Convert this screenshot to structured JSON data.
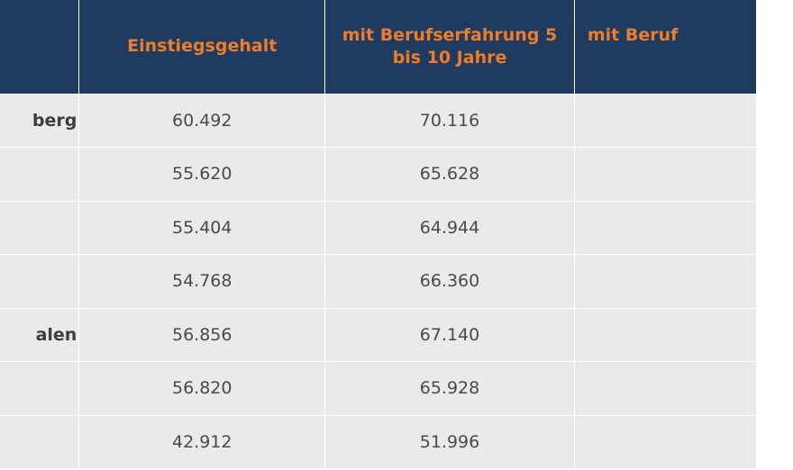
{
  "header": {
    "region": "",
    "entry_salary": "Einstiegsgehalt",
    "exp_5_10": "mit Berufserfahrung  5 bis 10 Jahre",
    "exp_more": "mit Beruf"
  },
  "rows": [
    {
      "region": "berg",
      "entry": "60.492",
      "exp": "70.116",
      "more": ""
    },
    {
      "region": "",
      "entry": "55.620",
      "exp": "65.628",
      "more": ""
    },
    {
      "region": "",
      "entry": "55.404",
      "exp": "64.944",
      "more": ""
    },
    {
      "region": "",
      "entry": "54.768",
      "exp": "66.360",
      "more": ""
    },
    {
      "region": "alen",
      "entry": "56.856",
      "exp": "67.140",
      "more": ""
    },
    {
      "region": "",
      "entry": "56.820",
      "exp": "65.928",
      "more": ""
    },
    {
      "region": "",
      "entry": "42.912",
      "exp": "51.996",
      "more": ""
    }
  ]
}
